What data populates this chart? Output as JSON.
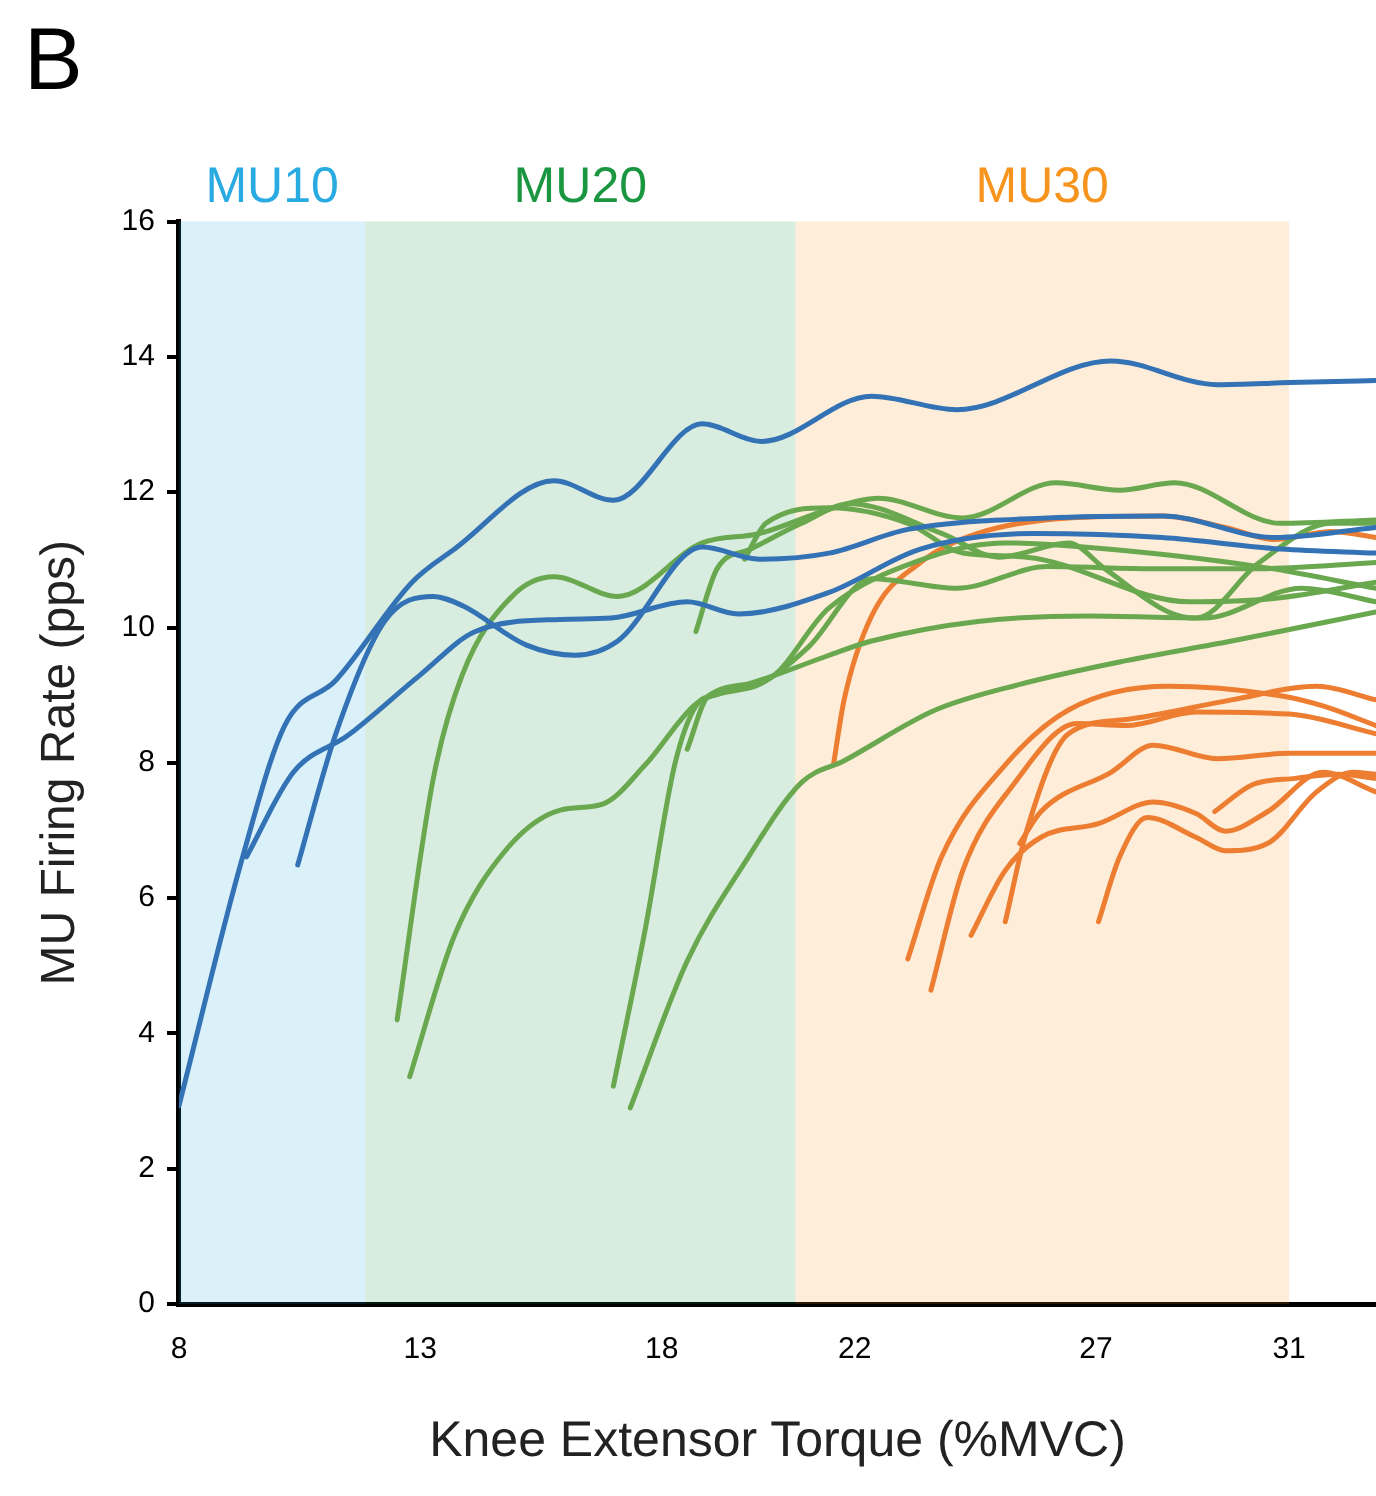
{
  "chart_data": {
    "type": "line",
    "title": "B",
    "xlabel": "Knee Extensor Torque (%MVC)",
    "ylabel": "MU Firing Rate (pps)",
    "xlim": [
      8,
      32.8
    ],
    "ylim": [
      0,
      16
    ],
    "xticks": [
      8,
      13,
      18,
      22,
      27,
      31
    ],
    "yticks": [
      0,
      2,
      4,
      6,
      8,
      10,
      12,
      14,
      16
    ],
    "grid": false,
    "legend": false,
    "marker": "none",
    "line_style": "solid",
    "bands": [
      {
        "axis": "x",
        "from": 8,
        "to": 11.86,
        "label": "MU10",
        "color": "#29abe2"
      },
      {
        "axis": "x",
        "from": 11.86,
        "to": 20.77,
        "label": "MU20",
        "color": "#1a9641"
      },
      {
        "axis": "x",
        "from": 20.77,
        "to": 31,
        "label": "MU30",
        "color": "#f7941d"
      }
    ],
    "series": [
      {
        "color": "#3372b5",
        "x": [
          8.0,
          9.32,
          10.19,
          11.25,
          12.83,
          13.71,
          15.77,
          17.0,
          18.84,
          20.07,
          22.35,
          24.11,
          27.31,
          29.51,
          31.0,
          32.8
        ],
        "values": [
          2.93,
          6.61,
          8.55,
          9.22,
          10.67,
          11.16,
          12.17,
          11.88,
          13.01,
          12.75,
          13.42,
          13.22,
          13.94,
          13.59,
          13.62,
          13.65
        ]
      },
      {
        "color": "#3372b5",
        "x": [
          9.4,
          10.37,
          11.51,
          13.0,
          14.14,
          15.9,
          16.95,
          18.53,
          19.59,
          21.47,
          23.36,
          25.73,
          28.37,
          30.82,
          32.8
        ],
        "values": [
          6.61,
          7.86,
          8.41,
          9.3,
          9.94,
          10.12,
          10.14,
          10.38,
          10.2,
          10.52,
          11.16,
          11.39,
          11.33,
          11.16,
          11.1
        ]
      },
      {
        "color": "#3372b5",
        "x": [
          10.46,
          11.25,
          12.26,
          13.27,
          13.88,
          15.2,
          16.21,
          17.09,
          18.84,
          20.03,
          21.47,
          23.1,
          25.99,
          28.37,
          30.69,
          32.8
        ],
        "values": [
          6.49,
          8.43,
          10.09,
          10.46,
          10.32,
          9.74,
          9.59,
          9.8,
          11.19,
          11.01,
          11.1,
          11.45,
          11.62,
          11.65,
          11.33,
          11.48
        ]
      },
      {
        "color": "#6aa84f",
        "x": [
          12.52,
          13.27,
          13.87,
          14.9,
          15.77,
          17.09,
          18.84,
          20.03,
          21.56,
          22.48,
          24.24,
          26.17,
          27.49,
          28.63,
          30.82,
          32.8
        ],
        "values": [
          4.2,
          7.77,
          9.3,
          10.46,
          10.75,
          10.46,
          11.25,
          11.39,
          11.77,
          11.91,
          11.62,
          12.14,
          12.03,
          12.14,
          11.54,
          11.59
        ]
      },
      {
        "color": "#6aa84f",
        "x": [
          12.78,
          13.71,
          14.76,
          15.9,
          16.78,
          17.66,
          18.71,
          19.41,
          20.29,
          21.47,
          22.35,
          24.55,
          26.87,
          29.24,
          31.26,
          32.8
        ],
        "values": [
          3.36,
          5.45,
          6.7,
          7.3,
          7.39,
          7.97,
          8.87,
          9.07,
          9.28,
          9.59,
          9.8,
          10.09,
          10.17,
          10.14,
          10.58,
          10.38
        ]
      },
      {
        "color": "#6aa84f",
        "x": [
          17.0,
          17.66,
          18.27,
          18.71,
          19.15,
          20.03,
          21.04,
          22.35,
          24.11,
          26.0,
          28.19,
          30.38,
          32.8
        ],
        "values": [
          3.22,
          5.54,
          7.97,
          8.84,
          9.01,
          9.16,
          9.71,
          10.72,
          10.58,
          10.9,
          10.87,
          10.87,
          10.96
        ]
      },
      {
        "color": "#6aa84f",
        "x": [
          17.35,
          18.53,
          19.72,
          20.9,
          21.78,
          23.67,
          25.42,
          27.62,
          29.81,
          32.8
        ],
        "values": [
          2.9,
          5.07,
          6.52,
          7.71,
          8.03,
          8.78,
          9.16,
          9.51,
          9.8,
          10.23
        ]
      },
      {
        "color": "#6aa84f",
        "x": [
          18.71,
          19.15,
          19.85,
          20.9,
          21.91,
          23.8,
          24.99,
          26.43,
          27.18,
          28.5,
          29.07,
          30.38,
          31.88,
          32.8
        ],
        "values": [
          9.94,
          10.87,
          11.16,
          11.54,
          11.83,
          11.39,
          11.04,
          11.25,
          10.87,
          10.23,
          10.14,
          10.96,
          11.54,
          11.54
        ]
      },
      {
        "color": "#6aa84f",
        "x": [
          18.53,
          18.97,
          20.16,
          21.47,
          23.54,
          25.12,
          26.74,
          30.38,
          32.8
        ],
        "values": [
          8.2,
          8.99,
          9.22,
          10.29,
          11.04,
          11.25,
          11.19,
          10.9,
          10.58
        ]
      },
      {
        "color": "#6aa84f",
        "x": [
          19.72,
          20.16,
          21.47,
          23.1,
          24.24,
          25.56,
          28.94,
          30.69,
          32.8
        ],
        "values": [
          11.01,
          11.54,
          11.77,
          11.54,
          11.1,
          11.04,
          10.38,
          10.43,
          10.67
        ]
      },
      {
        "color": "#ed7d31",
        "x": [
          21.56,
          21.78,
          22.35,
          23.36,
          24.55,
          26.43,
          28.37,
          29.68,
          30.69,
          31.88,
          32.8
        ],
        "values": [
          7.97,
          8.93,
          10.17,
          10.96,
          11.39,
          11.62,
          11.65,
          11.48,
          11.3,
          11.42,
          11.33
        ]
      },
      {
        "color": "#ed7d31",
        "x": [
          23.1,
          23.8,
          25.12,
          26.43,
          28.5,
          30.82,
          31.7,
          32.8
        ],
        "values": [
          5.1,
          6.61,
          7.97,
          8.78,
          9.13,
          8.99,
          8.84,
          8.55
        ]
      },
      {
        "color": "#ed7d31",
        "x": [
          23.58,
          24.24,
          25.29,
          26.61,
          27.62,
          29.07,
          31.0,
          32.8
        ],
        "values": [
          4.64,
          6.41,
          7.68,
          8.58,
          8.55,
          8.75,
          8.72,
          8.43
        ]
      },
      {
        "color": "#ed7d31",
        "x": [
          24.41,
          25.12,
          25.86,
          27.05,
          28.19,
          29.07,
          29.68,
          30.56,
          31.7,
          32.8
        ],
        "values": [
          5.45,
          6.41,
          6.9,
          7.1,
          7.42,
          7.25,
          6.99,
          7.28,
          7.86,
          7.57
        ]
      },
      {
        "color": "#ed7d31",
        "x": [
          25.12,
          25.56,
          26.43,
          27.62,
          29.81,
          31.57,
          32.8
        ],
        "values": [
          5.65,
          6.99,
          8.43,
          8.64,
          8.93,
          9.13,
          8.93
        ]
      },
      {
        "color": "#ed7d31",
        "x": [
          25.42,
          25.86,
          27.31,
          28.19,
          29.51,
          31.0,
          32.8
        ],
        "values": [
          6.81,
          7.28,
          7.86,
          8.26,
          8.06,
          8.14,
          8.14
        ]
      },
      {
        "color": "#ed7d31",
        "x": [
          27.05,
          27.49,
          28.06,
          29.07,
          29.68,
          30.56,
          31.57,
          32.32,
          32.8
        ],
        "values": [
          5.65,
          6.61,
          7.19,
          6.9,
          6.7,
          6.81,
          7.57,
          7.86,
          7.83
        ]
      },
      {
        "color": "#ed7d31",
        "x": [
          29.46,
          30.25,
          31.13,
          32.01,
          32.8
        ],
        "values": [
          7.28,
          7.68,
          7.77,
          7.83,
          7.77
        ]
      }
    ]
  }
}
